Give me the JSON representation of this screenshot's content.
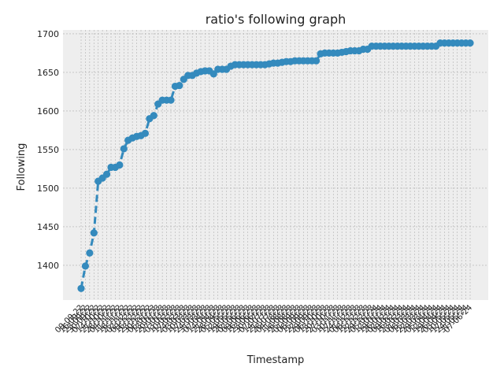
{
  "chart_data": {
    "type": "line",
    "title": "ratio's following graph",
    "xlabel": "Timestamp",
    "ylabel": "Following",
    "ylim": [
      1355,
      1705
    ],
    "y_ticks": [
      1400,
      1450,
      1500,
      1550,
      1600,
      1650,
      1700
    ],
    "grid": true,
    "line_style": "dashed",
    "marker": "circle",
    "colors": {
      "series": "#348ABD",
      "plot_background": "#EEEEEE",
      "grid": "#B0B0B0"
    },
    "series": [
      {
        "values": [
          1370,
          1399,
          1416,
          1442,
          1509,
          1513,
          1518,
          1527,
          1527,
          1530,
          1551,
          1562,
          1565,
          1567,
          1568,
          1571,
          1590,
          1594,
          1609,
          1614,
          1614,
          1614,
          1632,
          1633,
          1641,
          1646,
          1646,
          1649,
          1651,
          1652,
          1652,
          1648,
          1654,
          1654,
          1654,
          1658,
          1660,
          1660,
          1660,
          1660,
          1660,
          1660,
          1660,
          1660,
          1661,
          1662,
          1662,
          1663,
          1664,
          1664,
          1665,
          1665,
          1665,
          1665,
          1665,
          1665,
          1674,
          1675,
          1675,
          1675,
          1675,
          1676,
          1677,
          1678,
          1678,
          1678,
          1680,
          1680,
          1684,
          1684,
          1684,
          1684,
          1684,
          1684,
          1684,
          1684,
          1684,
          1684,
          1684,
          1684,
          1684,
          1684,
          1684,
          1684,
          1688,
          1688,
          1688,
          1688,
          1688,
          1688,
          1688,
          1688
        ]
      }
    ],
    "x_tick_labels": [
      "09-09-22",
      "16-09-22",
      "23-09-22",
      "30-09-22",
      "07-10-22",
      "14-10-22",
      "21-10-22",
      "28-10-22",
      "04-11-22",
      "11-11-22",
      "18-11-22",
      "25-11-22",
      "02-12-22",
      "09-12-22",
      "16-12-22",
      "23-12-22",
      "30-12-22",
      "06-01-23",
      "13-01-23",
      "20-01-23",
      "27-01-23",
      "03-02-23",
      "10-02-23",
      "17-02-23",
      "24-02-23",
      "03-03-23",
      "10-03-23",
      "17-03-23",
      "24-03-23",
      "31-03-23",
      "07-04-23",
      "14-04-23",
      "21-04-23",
      "28-04-23",
      "05-05-23",
      "12-05-23",
      "19-05-23",
      "26-05-23",
      "02-06-23",
      "09-06-23",
      "16-06-23",
      "23-06-23",
      "30-06-23",
      "07-07-23",
      "14-07-23",
      "21-07-23",
      "28-07-23",
      "04-08-23",
      "11-08-23",
      "18-08-23",
      "25-08-23",
      "01-09-23",
      "08-09-23",
      "15-09-23",
      "22-09-23",
      "29-09-23",
      "06-10-23",
      "13-10-23",
      "20-10-23",
      "27-10-23",
      "03-11-23",
      "10-11-23",
      "17-11-23",
      "24-11-23",
      "01-12-23",
      "08-12-23",
      "15-12-23",
      "22-12-23",
      "29-12-23",
      "05-01-24",
      "12-01-24",
      "19-01-24",
      "26-01-24",
      "02-02-24",
      "09-02-24",
      "16-02-24",
      "23-02-24",
      "01-03-24",
      "08-03-24",
      "15-03-24",
      "22-03-24",
      "29-03-24",
      "05-04-24",
      "12-04-24",
      "19-04-24",
      "26-04-24",
      "03-05-24",
      "10-05-24",
      "17-05-24",
      "24-05-24",
      "31-05-24",
      "07-06-24"
    ]
  }
}
